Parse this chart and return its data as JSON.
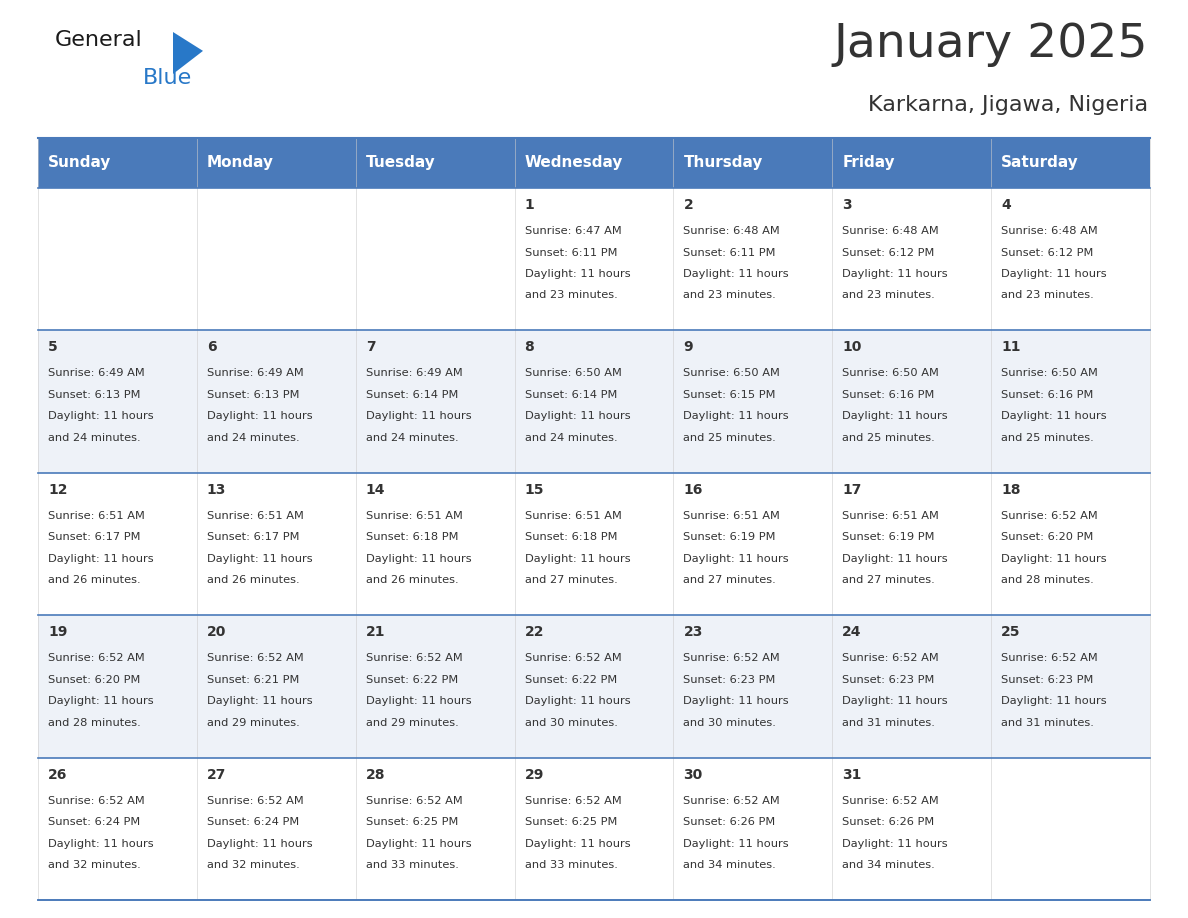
{
  "title": "January 2025",
  "subtitle": "Karkarna, Jigawa, Nigeria",
  "header_bg": "#4a7aba",
  "header_text_color": "#FFFFFF",
  "day_names": [
    "Sunday",
    "Monday",
    "Tuesday",
    "Wednesday",
    "Thursday",
    "Friday",
    "Saturday"
  ],
  "weeks": [
    [
      {
        "day": "",
        "sunrise": "",
        "sunset": "",
        "daylight": ""
      },
      {
        "day": "",
        "sunrise": "",
        "sunset": "",
        "daylight": ""
      },
      {
        "day": "",
        "sunrise": "",
        "sunset": "",
        "daylight": ""
      },
      {
        "day": "1",
        "sunrise": "6:47 AM",
        "sunset": "6:11 PM",
        "daylight": "11 hours and 23 minutes."
      },
      {
        "day": "2",
        "sunrise": "6:48 AM",
        "sunset": "6:11 PM",
        "daylight": "11 hours and 23 minutes."
      },
      {
        "day": "3",
        "sunrise": "6:48 AM",
        "sunset": "6:12 PM",
        "daylight": "11 hours and 23 minutes."
      },
      {
        "day": "4",
        "sunrise": "6:48 AM",
        "sunset": "6:12 PM",
        "daylight": "11 hours and 23 minutes."
      }
    ],
    [
      {
        "day": "5",
        "sunrise": "6:49 AM",
        "sunset": "6:13 PM",
        "daylight": "11 hours and 24 minutes."
      },
      {
        "day": "6",
        "sunrise": "6:49 AM",
        "sunset": "6:13 PM",
        "daylight": "11 hours and 24 minutes."
      },
      {
        "day": "7",
        "sunrise": "6:49 AM",
        "sunset": "6:14 PM",
        "daylight": "11 hours and 24 minutes."
      },
      {
        "day": "8",
        "sunrise": "6:50 AM",
        "sunset": "6:14 PM",
        "daylight": "11 hours and 24 minutes."
      },
      {
        "day": "9",
        "sunrise": "6:50 AM",
        "sunset": "6:15 PM",
        "daylight": "11 hours and 25 minutes."
      },
      {
        "day": "10",
        "sunrise": "6:50 AM",
        "sunset": "6:16 PM",
        "daylight": "11 hours and 25 minutes."
      },
      {
        "day": "11",
        "sunrise": "6:50 AM",
        "sunset": "6:16 PM",
        "daylight": "11 hours and 25 minutes."
      }
    ],
    [
      {
        "day": "12",
        "sunrise": "6:51 AM",
        "sunset": "6:17 PM",
        "daylight": "11 hours and 26 minutes."
      },
      {
        "day": "13",
        "sunrise": "6:51 AM",
        "sunset": "6:17 PM",
        "daylight": "11 hours and 26 minutes."
      },
      {
        "day": "14",
        "sunrise": "6:51 AM",
        "sunset": "6:18 PM",
        "daylight": "11 hours and 26 minutes."
      },
      {
        "day": "15",
        "sunrise": "6:51 AM",
        "sunset": "6:18 PM",
        "daylight": "11 hours and 27 minutes."
      },
      {
        "day": "16",
        "sunrise": "6:51 AM",
        "sunset": "6:19 PM",
        "daylight": "11 hours and 27 minutes."
      },
      {
        "day": "17",
        "sunrise": "6:51 AM",
        "sunset": "6:19 PM",
        "daylight": "11 hours and 27 minutes."
      },
      {
        "day": "18",
        "sunrise": "6:52 AM",
        "sunset": "6:20 PM",
        "daylight": "11 hours and 28 minutes."
      }
    ],
    [
      {
        "day": "19",
        "sunrise": "6:52 AM",
        "sunset": "6:20 PM",
        "daylight": "11 hours and 28 minutes."
      },
      {
        "day": "20",
        "sunrise": "6:52 AM",
        "sunset": "6:21 PM",
        "daylight": "11 hours and 29 minutes."
      },
      {
        "day": "21",
        "sunrise": "6:52 AM",
        "sunset": "6:22 PM",
        "daylight": "11 hours and 29 minutes."
      },
      {
        "day": "22",
        "sunrise": "6:52 AM",
        "sunset": "6:22 PM",
        "daylight": "11 hours and 30 minutes."
      },
      {
        "day": "23",
        "sunrise": "6:52 AM",
        "sunset": "6:23 PM",
        "daylight": "11 hours and 30 minutes."
      },
      {
        "day": "24",
        "sunrise": "6:52 AM",
        "sunset": "6:23 PM",
        "daylight": "11 hours and 31 minutes."
      },
      {
        "day": "25",
        "sunrise": "6:52 AM",
        "sunset": "6:23 PM",
        "daylight": "11 hours and 31 minutes."
      }
    ],
    [
      {
        "day": "26",
        "sunrise": "6:52 AM",
        "sunset": "6:24 PM",
        "daylight": "11 hours and 32 minutes."
      },
      {
        "day": "27",
        "sunrise": "6:52 AM",
        "sunset": "6:24 PM",
        "daylight": "11 hours and 32 minutes."
      },
      {
        "day": "28",
        "sunrise": "6:52 AM",
        "sunset": "6:25 PM",
        "daylight": "11 hours and 33 minutes."
      },
      {
        "day": "29",
        "sunrise": "6:52 AM",
        "sunset": "6:25 PM",
        "daylight": "11 hours and 33 minutes."
      },
      {
        "day": "30",
        "sunrise": "6:52 AM",
        "sunset": "6:26 PM",
        "daylight": "11 hours and 34 minutes."
      },
      {
        "day": "31",
        "sunrise": "6:52 AM",
        "sunset": "6:26 PM",
        "daylight": "11 hours and 34 minutes."
      },
      {
        "day": "",
        "sunrise": "",
        "sunset": "",
        "daylight": ""
      }
    ]
  ],
  "cell_bg_even": "#FFFFFF",
  "cell_bg_odd": "#EEF2F8",
  "grid_line_color": "#4a7aba",
  "text_color": "#333333",
  "logo_general_color": "#1a1a1a",
  "logo_blue_color": "#2878C8",
  "logo_triangle_color": "#2878C8"
}
